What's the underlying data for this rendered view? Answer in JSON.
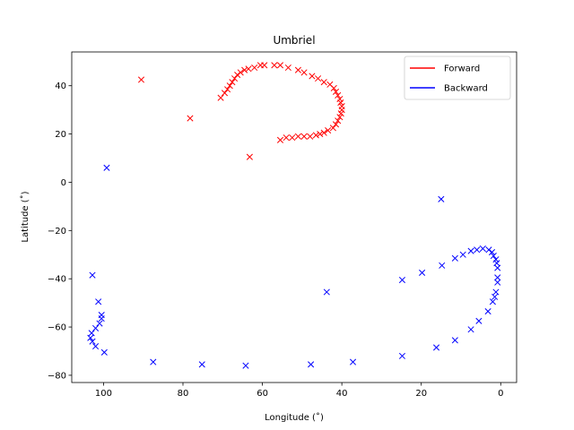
{
  "chart_data": {
    "type": "scatter",
    "title": "Umbriel",
    "xlabel": "Longitude (˚)",
    "ylabel": "Latitude (˚)",
    "xlim": [
      108,
      -4
    ],
    "ylim": [
      -83,
      54
    ],
    "x_ticks": [
      100,
      80,
      60,
      40,
      20,
      0
    ],
    "y_ticks": [
      40,
      20,
      0,
      -20,
      -40,
      -60,
      -80
    ],
    "grid": false,
    "legend_position": "top-right",
    "marker": "x",
    "series": [
      {
        "name": "Forward",
        "color": "#ff0000",
        "points": [
          [
            90.5,
            42.5
          ],
          [
            78.2,
            26.5
          ],
          [
            63.2,
            10.5
          ],
          [
            70.5,
            35.0
          ],
          [
            69.5,
            37.0
          ],
          [
            68.8,
            38.5
          ],
          [
            68.2,
            40.0
          ],
          [
            67.6,
            41.5
          ],
          [
            67.0,
            43.0
          ],
          [
            66.3,
            44.5
          ],
          [
            65.5,
            45.5
          ],
          [
            64.5,
            46.5
          ],
          [
            63.5,
            47.0
          ],
          [
            62.0,
            47.5
          ],
          [
            60.5,
            48.5
          ],
          [
            59.5,
            48.5
          ],
          [
            57.0,
            48.5
          ],
          [
            55.5,
            48.5
          ],
          [
            53.5,
            47.5
          ],
          [
            51.0,
            46.5
          ],
          [
            49.5,
            45.5
          ],
          [
            47.5,
            44.0
          ],
          [
            46.0,
            43.0
          ],
          [
            44.5,
            41.5
          ],
          [
            43.0,
            40.5
          ],
          [
            42.0,
            39.0
          ],
          [
            41.5,
            37.5
          ],
          [
            41.0,
            36.0
          ],
          [
            40.5,
            34.5
          ],
          [
            40.3,
            33.0
          ],
          [
            40.0,
            31.5
          ],
          [
            40.0,
            30.0
          ],
          [
            40.2,
            28.5
          ],
          [
            40.5,
            27.0
          ],
          [
            41.0,
            25.5
          ],
          [
            41.5,
            24.0
          ],
          [
            42.2,
            22.5
          ],
          [
            43.5,
            21.5
          ],
          [
            44.5,
            20.5
          ],
          [
            45.5,
            20.0
          ],
          [
            46.5,
            19.5
          ],
          [
            48.0,
            19.0
          ],
          [
            49.5,
            19.0
          ],
          [
            51.0,
            19.0
          ],
          [
            52.5,
            18.5
          ],
          [
            54.0,
            18.5
          ],
          [
            55.5,
            17.5
          ]
        ]
      },
      {
        "name": "Backward",
        "color": "#0000ff",
        "points": [
          [
            99.2,
            6.0
          ],
          [
            15.0,
            -7.0
          ],
          [
            43.8,
            -45.5
          ],
          [
            24.8,
            -40.5
          ],
          [
            19.8,
            -37.5
          ],
          [
            14.8,
            -34.5
          ],
          [
            11.5,
            -31.5
          ],
          [
            9.5,
            -30.0
          ],
          [
            7.5,
            -28.5
          ],
          [
            6.0,
            -28.0
          ],
          [
            4.5,
            -27.5
          ],
          [
            3.0,
            -28.0
          ],
          [
            2.2,
            -29.0
          ],
          [
            1.8,
            -30.5
          ],
          [
            1.2,
            -32.0
          ],
          [
            1.0,
            -33.5
          ],
          [
            0.8,
            -35.5
          ],
          [
            0.8,
            -39.5
          ],
          [
            0.8,
            -41.5
          ],
          [
            1.2,
            -45.5
          ],
          [
            1.5,
            -47.5
          ],
          [
            2.0,
            -49.5
          ],
          [
            3.2,
            -53.5
          ],
          [
            5.5,
            -57.5
          ],
          [
            7.5,
            -61.0
          ],
          [
            11.5,
            -65.5
          ],
          [
            16.2,
            -68.5
          ],
          [
            24.8,
            -72.0
          ],
          [
            37.2,
            -74.5
          ],
          [
            47.8,
            -75.5
          ],
          [
            64.2,
            -76.0
          ],
          [
            75.2,
            -75.5
          ],
          [
            87.5,
            -74.5
          ],
          [
            99.8,
            -70.5
          ],
          [
            102.0,
            -68.0
          ],
          [
            102.8,
            -66.0
          ],
          [
            103.3,
            -64.5
          ],
          [
            103.0,
            -62.5
          ],
          [
            102.0,
            -60.5
          ],
          [
            101.0,
            -58.5
          ],
          [
            100.5,
            -56.5
          ],
          [
            100.5,
            -55.0
          ],
          [
            101.3,
            -49.5
          ],
          [
            102.8,
            -38.5
          ]
        ]
      }
    ]
  }
}
